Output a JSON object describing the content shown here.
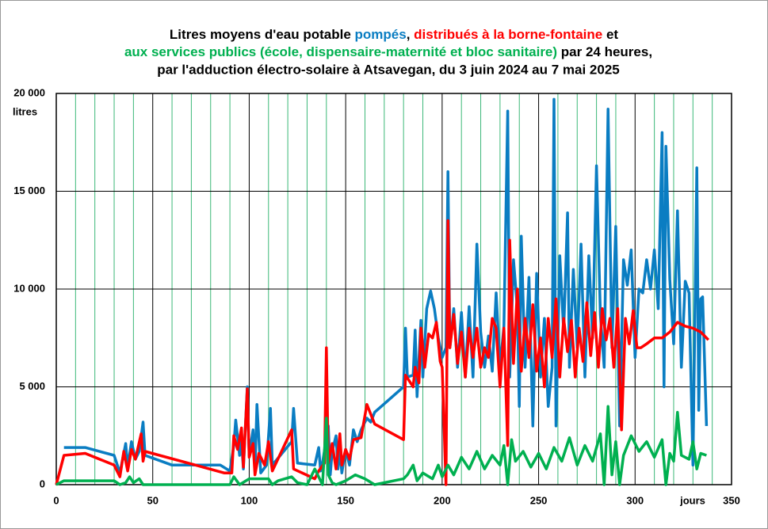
{
  "chart_data": {
    "type": "line",
    "title_parts": [
      "Litres moyens d'eau potable ",
      ", ",
      " et",
      " par 24 heures,",
      "par l'adduction électro-solaire à Atsavegan, du 3 juin 2024 au 7 mai 2025"
    ],
    "ylabel": "litres",
    "xlabel": "jours",
    "xlim": [
      0,
      350
    ],
    "xticks": [
      0,
      50,
      100,
      150,
      200,
      250,
      300,
      350
    ],
    "xminorticks": [
      10,
      20,
      30,
      40,
      60,
      70,
      80,
      90,
      110,
      120,
      130,
      140,
      160,
      170,
      180,
      190,
      210,
      220,
      230,
      240,
      260,
      270,
      280,
      290,
      310,
      320,
      330,
      340
    ],
    "ylim": [
      0,
      20000
    ],
    "yticks": [
      {
        "value": 0,
        "label": "0"
      },
      {
        "value": 5000,
        "label": "5 000"
      },
      {
        "value": 10000,
        "label": "10 000"
      },
      {
        "value": 15000,
        "label": "15 000"
      },
      {
        "value": 20000,
        "label": "20 000"
      }
    ],
    "grid": true,
    "series": [
      {
        "name": "pompés",
        "color": "#0a7dc2",
        "x": [
          4,
          15,
          30,
          33,
          36,
          37,
          39,
          41,
          43,
          45,
          46,
          60,
          85,
          90,
          92,
          93,
          95,
          96,
          97,
          99,
          100,
          102,
          103,
          104,
          106,
          109,
          111,
          112,
          122,
          123,
          125,
          134,
          136,
          137,
          138,
          141,
          142,
          143,
          145,
          146,
          147,
          148,
          150,
          152,
          154,
          156,
          158,
          161,
          163,
          165,
          180,
          181,
          182,
          185,
          186,
          187,
          189,
          190,
          192,
          194,
          196,
          198,
          200,
          202,
          203,
          204,
          206,
          208,
          210,
          212,
          214,
          216,
          218,
          220,
          222,
          224,
          226,
          228,
          230,
          232,
          234,
          235,
          237,
          239,
          240,
          241,
          243,
          245,
          247,
          249,
          251,
          253,
          255,
          257,
          258,
          259,
          261,
          263,
          265,
          266,
          268,
          270,
          272,
          274,
          276,
          278,
          280,
          282,
          284,
          286,
          288,
          290,
          292,
          294,
          296,
          298,
          300,
          302,
          304,
          306,
          308,
          310,
          312,
          314,
          315,
          316,
          318,
          320,
          322,
          324,
          326,
          328,
          330,
          332,
          333,
          334,
          335,
          337
        ],
        "values": [
          1900,
          1900,
          1500,
          600,
          2100,
          900,
          2200,
          1300,
          1700,
          3200,
          1500,
          1000,
          1000,
          700,
          2000,
          3300,
          1500,
          2200,
          800,
          5000,
          1500,
          2800,
          700,
          4100,
          600,
          1000,
          3900,
          1000,
          2200,
          3900,
          1100,
          1000,
          1900,
          700,
          1100,
          3000,
          500,
          1700,
          2500,
          800,
          1800,
          600,
          1800,
          1000,
          2800,
          2200,
          2800,
          3400,
          3200,
          3700,
          5000,
          8000,
          5500,
          5600,
          7900,
          4500,
          8400,
          5500,
          9000,
          9900,
          9000,
          7500,
          6500,
          7000,
          16000,
          7000,
          9000,
          6000,
          8800,
          5500,
          9100,
          5500,
          12300,
          7800,
          6000,
          7600,
          5800,
          9800,
          6000,
          8100,
          19100,
          5500,
          11500,
          9000,
          4000,
          12700,
          6000,
          10600,
          3000,
          10800,
          5500,
          8500,
          4000,
          6000,
          19700,
          3000,
          11700,
          7800,
          13900,
          6000,
          11000,
          7000,
          12300,
          5500,
          11700,
          7500,
          16300,
          8700,
          6000,
          19200,
          7000,
          13200,
          3000,
          11500,
          10200,
          12000,
          6500,
          10000,
          9800,
          11500,
          10000,
          12000,
          9000,
          18000,
          5000,
          17300,
          10500,
          7200,
          14000,
          6000,
          10400,
          9800,
          1000,
          16200,
          3800,
          9500,
          9600,
          3000
        ]
      },
      {
        "name": "distribués à la borne-fontaine",
        "color": "#ff0000",
        "x": [
          0,
          4,
          15,
          30,
          33,
          35,
          37,
          39,
          41,
          44,
          45,
          46,
          87,
          91,
          92,
          94,
          96,
          97,
          99,
          100,
          102,
          103,
          105,
          108,
          110,
          112,
          122,
          123,
          134,
          136,
          139,
          140,
          141,
          143,
          145,
          147,
          148,
          150,
          152,
          154,
          158,
          161,
          165,
          180,
          181,
          185,
          186,
          188,
          189,
          191,
          193,
          195,
          197,
          199,
          200,
          202,
          203,
          204,
          206,
          208,
          210,
          212,
          214,
          216,
          218,
          220,
          222,
          224,
          226,
          228,
          230,
          232,
          234,
          235,
          237,
          239,
          241,
          243,
          245,
          247,
          249,
          251,
          253,
          255,
          257,
          259,
          261,
          263,
          265,
          267,
          269,
          271,
          273,
          275,
          277,
          279,
          281,
          283,
          285,
          287,
          289,
          291,
          293,
          295,
          297,
          299,
          301,
          303,
          306,
          310,
          314,
          318,
          322,
          326,
          330,
          334,
          338
        ],
        "values": [
          0,
          1500,
          1600,
          1000,
          400,
          1700,
          700,
          1800,
          1300,
          2600,
          1200,
          1700,
          600,
          600,
          2500,
          1800,
          2900,
          900,
          4900,
          1400,
          2100,
          500,
          1600,
          1000,
          2200,
          700,
          2800,
          800,
          300,
          700,
          1100,
          7000,
          1100,
          2100,
          800,
          2600,
          1000,
          1800,
          1300,
          2300,
          2400,
          4100,
          3100,
          2300,
          5600,
          5000,
          6000,
          5200,
          8000,
          6000,
          7700,
          7500,
          8300,
          6300,
          6000,
          0,
          13500,
          7000,
          8700,
          6200,
          7800,
          5500,
          8000,
          6500,
          8000,
          6000,
          7000,
          6500,
          8500,
          8000,
          5000,
          8000,
          2000,
          12500,
          6200,
          10000,
          5800,
          8500,
          6500,
          9200,
          5800,
          7500,
          5000,
          8500,
          6500,
          9500,
          5500,
          8500,
          6800,
          8400,
          5500,
          8000,
          6300,
          9300,
          6600,
          8800,
          6000,
          9000,
          7400,
          8500,
          6000,
          9000,
          2800,
          8500,
          7200,
          8900,
          7000,
          7000,
          7200,
          7500,
          7500,
          7800,
          8300,
          8100,
          8000,
          7800,
          7400
        ]
      },
      {
        "name": "aux services publics (école, dispensaire-maternité et bloc sanitaire)",
        "color": "#00b050",
        "x": [
          0,
          4,
          30,
          33,
          36,
          38,
          40,
          43,
          45,
          90,
          92,
          95,
          100,
          110,
          112,
          115,
          122,
          125,
          130,
          134,
          138,
          140,
          141,
          143,
          145,
          150,
          155,
          160,
          165,
          180,
          182,
          185,
          187,
          190,
          195,
          198,
          200,
          203,
          206,
          210,
          214,
          218,
          222,
          226,
          230,
          232,
          234,
          236,
          238,
          242,
          246,
          250,
          254,
          258,
          262,
          266,
          270,
          274,
          278,
          282,
          284,
          286,
          288,
          290,
          292,
          294,
          298,
          302,
          306,
          310,
          314,
          316,
          318,
          320,
          322,
          324,
          328,
          330,
          332,
          334,
          337
        ],
        "values": [
          0,
          200,
          200,
          0,
          100,
          400,
          100,
          300,
          0,
          0,
          400,
          0,
          300,
          300,
          0,
          200,
          400,
          100,
          0,
          800,
          0,
          3400,
          500,
          100,
          0,
          200,
          500,
          300,
          0,
          300,
          500,
          1000,
          200,
          600,
          300,
          1000,
          400,
          1000,
          500,
          1400,
          800,
          1700,
          800,
          1500,
          1000,
          2000,
          0,
          2300,
          1200,
          1700,
          900,
          1600,
          800,
          1900,
          1200,
          2400,
          1000,
          2000,
          1200,
          2600,
          0,
          4000,
          500,
          2200,
          0,
          1500,
          2500,
          1700,
          2200,
          1400,
          2300,
          0,
          1600,
          1200,
          3700,
          1500,
          1300,
          2200,
          800,
          1600,
          1500
        ]
      }
    ]
  }
}
